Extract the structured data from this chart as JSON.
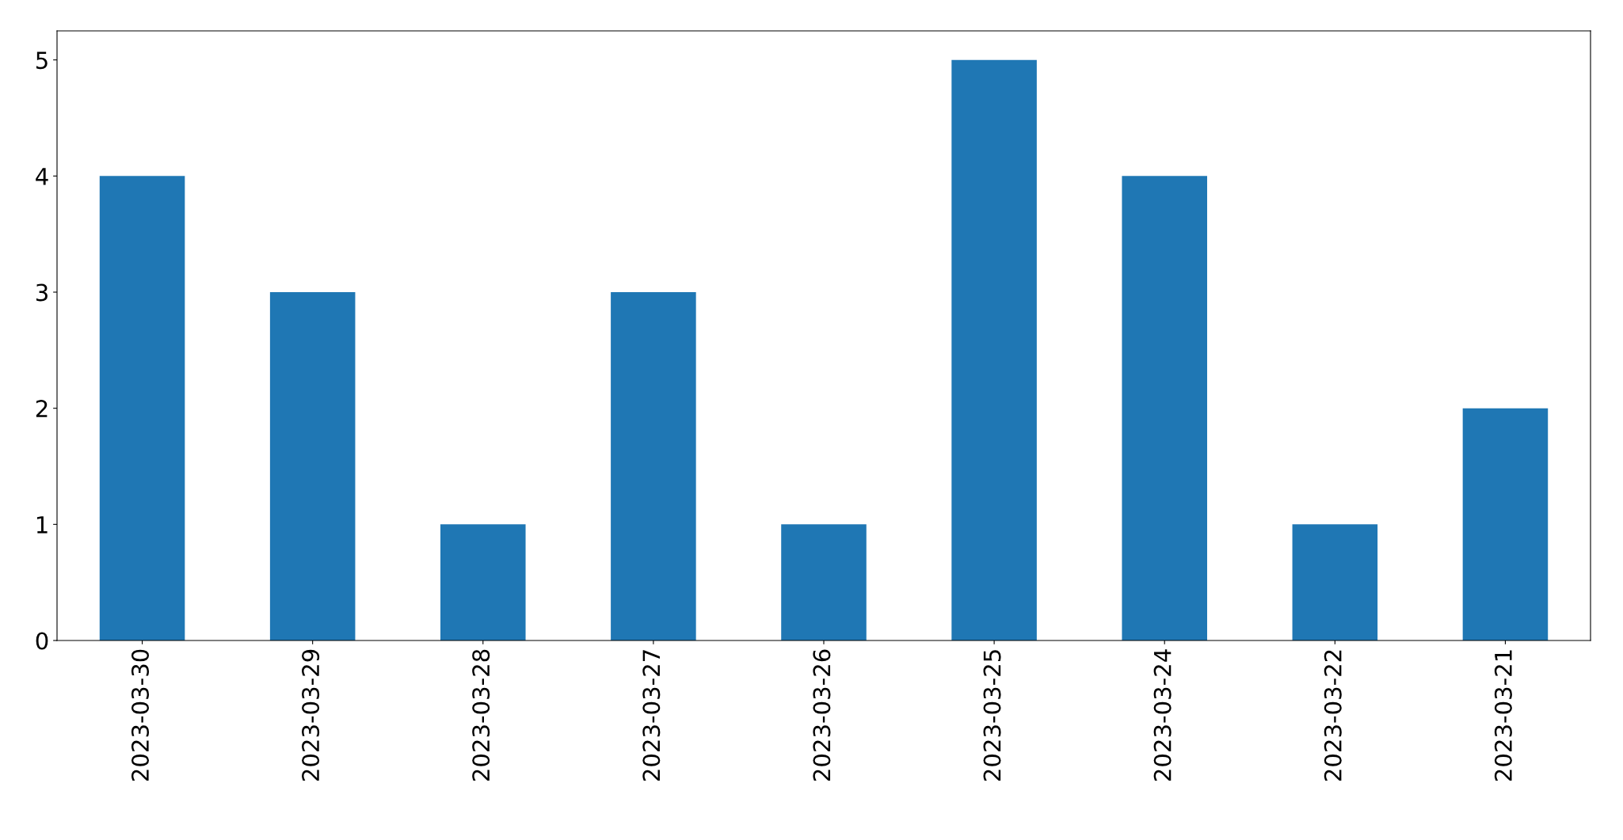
{
  "chart_data": {
    "type": "bar",
    "categories": [
      "2023-03-30",
      "2023-03-29",
      "2023-03-28",
      "2023-03-27",
      "2023-03-26",
      "2023-03-25",
      "2023-03-24",
      "2023-03-22",
      "2023-03-21"
    ],
    "values": [
      4,
      3,
      1,
      3,
      1,
      5,
      4,
      1,
      2
    ],
    "color": "#1f77b4",
    "ylim": [
      0,
      5.25
    ],
    "yticks": [
      0,
      1,
      2,
      3,
      4,
      5
    ],
    "grid": false,
    "legend": false
  }
}
